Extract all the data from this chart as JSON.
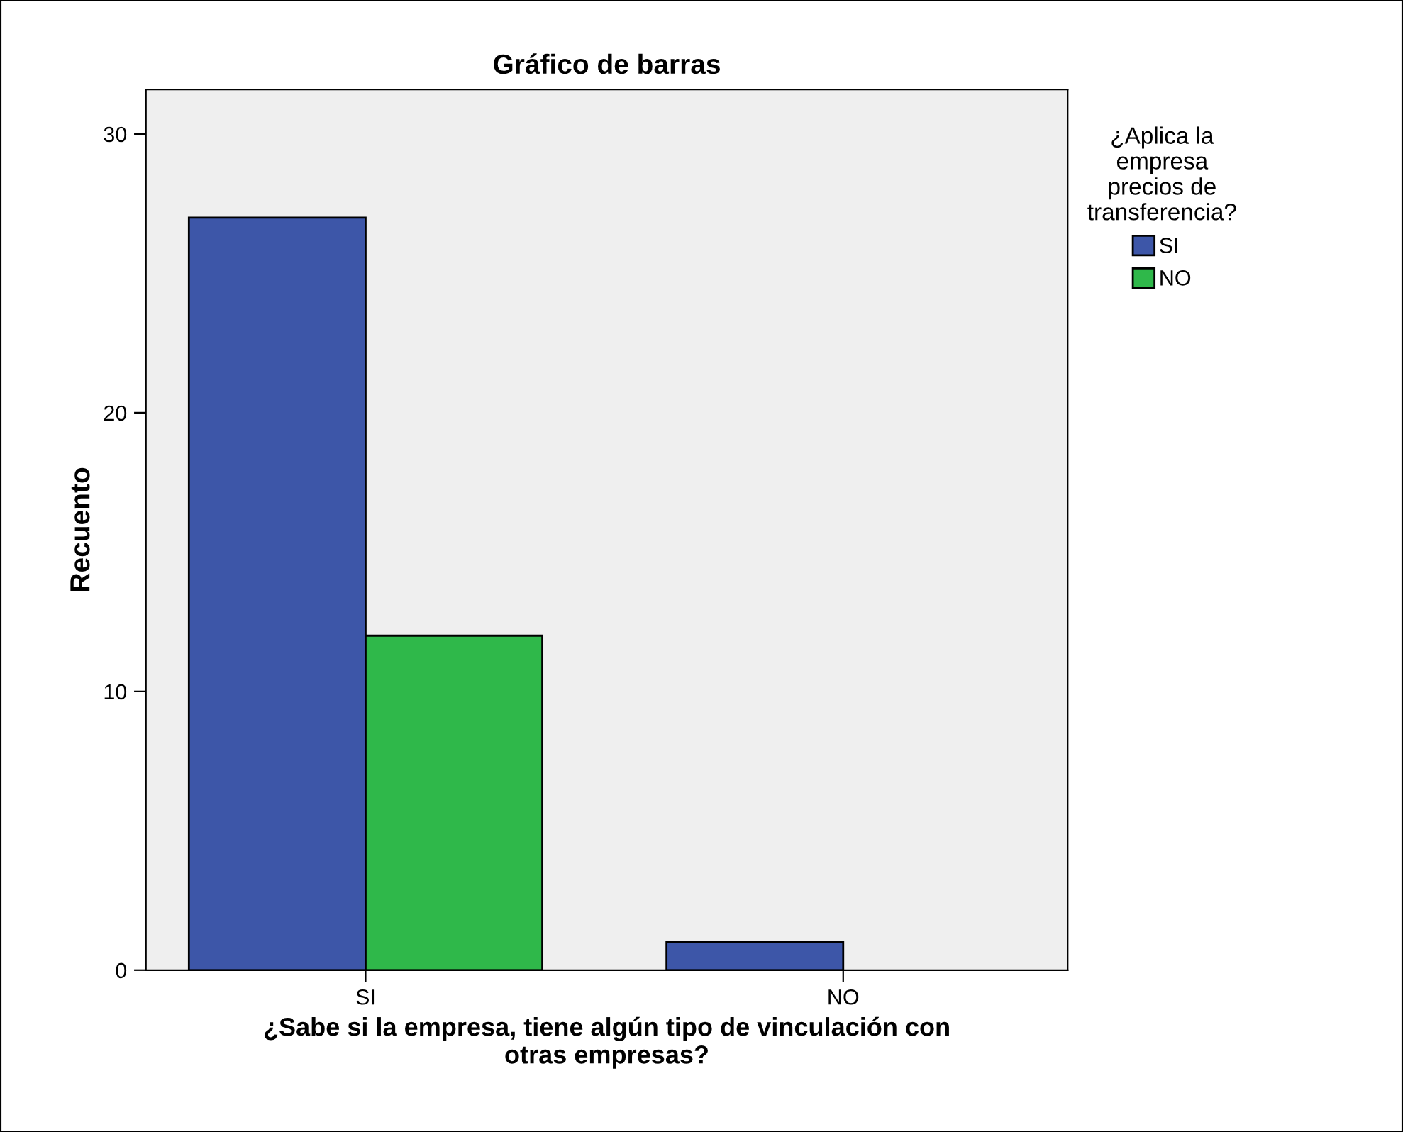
{
  "chart_data": {
    "type": "bar",
    "title": "Gráfico de barras",
    "xlabel": "¿Sabe si la empresa, tiene algún tipo de vinculación con\notras empresas?",
    "ylabel": "Recuento",
    "legend_title": "¿Aplica la\nempresa\nprecios de\ntransferencia?",
    "categories": [
      "SI",
      "NO"
    ],
    "series": [
      {
        "name": "SI",
        "color": "#3d56a8",
        "values": [
          27,
          1
        ]
      },
      {
        "name": "NO",
        "color": "#2fb84a",
        "values": [
          12,
          null
        ]
      }
    ],
    "ylim": [
      0,
      31.6
    ],
    "yticks": [
      0,
      10,
      20,
      30
    ],
    "grid": false,
    "legend": "top right"
  }
}
